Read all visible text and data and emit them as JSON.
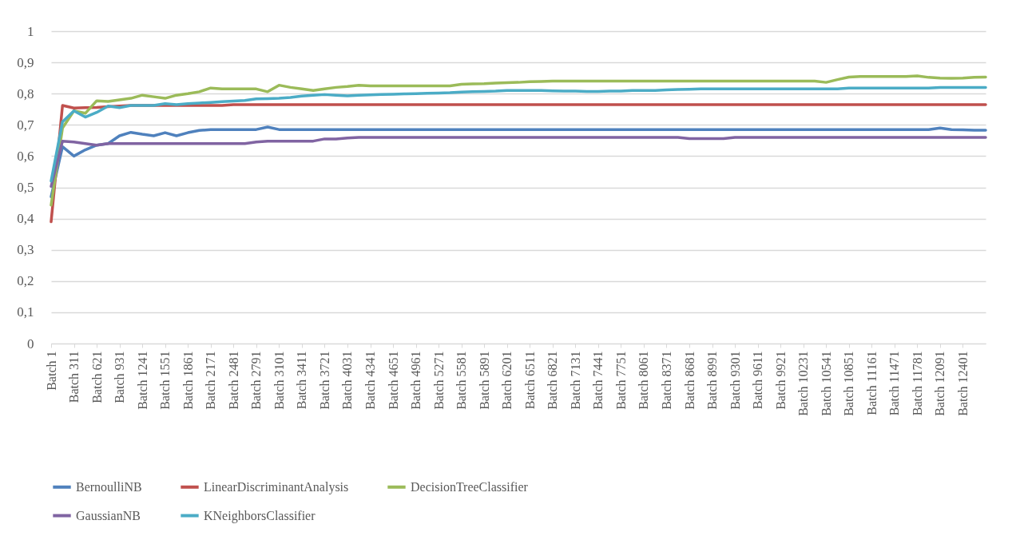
{
  "chart_data": {
    "type": "line",
    "legend": "bottom",
    "grid": "y",
    "line_style": "solid",
    "marker": "none",
    "categories": [
      "Batch 1",
      null,
      "Batch 311",
      null,
      "Batch 621",
      null,
      "Batch 931",
      null,
      "Batch 1241",
      null,
      "Batch 1551",
      null,
      "Batch 1861",
      null,
      "Batch 2171",
      null,
      "Batch 2481",
      null,
      "Batch 2791",
      null,
      "Batch 3101",
      null,
      "Batch 3411",
      null,
      "Batch 3721",
      null,
      "Batch 4031",
      null,
      "Batch 4341",
      null,
      "Batch 4651",
      null,
      "Batch 4961",
      null,
      "Batch 5271",
      null,
      "Batch 5581",
      null,
      "Batch 5891",
      null,
      "Batch 6201",
      null,
      "Batch 6511",
      null,
      "Batch 6821",
      null,
      "Batch 7131",
      null,
      "Batch 7441",
      null,
      "Batch 7751",
      null,
      "Batch 8061",
      null,
      "Batch 8371",
      null,
      "Batch 8681",
      null,
      "Batch 8991",
      null,
      "Batch 9301",
      null,
      "Batch 9611",
      null,
      "Batch 9921",
      null,
      "Batch 10231",
      null,
      "Batch 10541",
      null,
      "Batch 10851",
      null,
      "Batch 11161",
      null,
      "Batch 11471",
      null,
      "Batch 11781",
      null,
      "Batch 12091",
      null,
      "Batch 12401",
      null,
      null
    ],
    "ylim": [
      0,
      1
    ],
    "yticks": [
      0,
      {
        "value": 0.1,
        "label": "0,1"
      },
      {
        "value": 0.2,
        "label": "0,2"
      },
      {
        "value": 0.3,
        "label": "0,3"
      },
      {
        "value": 0.4,
        "label": "0,4"
      },
      {
        "value": 0.5,
        "label": "0,5"
      },
      {
        "value": 0.6,
        "label": "0,6"
      },
      {
        "value": 0.7,
        "label": "0,7"
      },
      {
        "value": 0.8,
        "label": "0,8"
      },
      {
        "value": 0.9,
        "label": "0,9"
      },
      1
    ],
    "series": [
      {
        "name": "BernoulliNB",
        "color": "#4f81bd",
        "values": [
          0.47,
          0.63,
          0.6,
          0.62,
          0.635,
          0.64,
          0.665,
          0.676,
          0.67,
          0.665,
          0.675,
          0.665,
          0.675,
          0.682,
          0.685,
          0.685,
          0.685,
          0.685,
          0.685,
          0.693,
          0.685,
          0.685,
          0.685,
          0.685,
          0.685,
          0.685,
          0.685,
          0.685,
          0.685,
          0.685,
          0.685,
          0.685,
          0.685,
          0.685,
          0.685,
          0.685,
          0.685,
          0.685,
          0.685,
          0.685,
          0.685,
          0.685,
          0.685,
          0.685,
          0.685,
          0.685,
          0.685,
          0.685,
          0.685,
          0.685,
          0.685,
          0.685,
          0.685,
          0.685,
          0.685,
          0.685,
          0.685,
          0.685,
          0.685,
          0.685,
          0.685,
          0.685,
          0.685,
          0.685,
          0.685,
          0.685,
          0.685,
          0.685,
          0.685,
          0.685,
          0.685,
          0.685,
          0.685,
          0.685,
          0.685,
          0.685,
          0.685,
          0.685,
          0.69,
          0.685,
          0.684,
          0.683,
          0.683
        ]
      },
      {
        "name": "LinearDiscriminantAnalysis",
        "color": "#c0504d",
        "values": [
          0.39,
          0.762,
          0.754,
          0.755,
          0.756,
          0.758,
          0.76,
          0.762,
          0.762,
          0.762,
          0.762,
          0.762,
          0.762,
          0.762,
          0.762,
          0.762,
          0.765,
          0.765,
          0.765,
          0.765,
          0.765,
          0.765,
          0.765,
          0.765,
          0.765,
          0.765,
          0.765,
          0.765,
          0.765,
          0.765,
          0.765,
          0.765,
          0.765,
          0.765,
          0.765,
          0.765,
          0.765,
          0.765,
          0.765,
          0.765,
          0.765,
          0.765,
          0.765,
          0.765,
          0.765,
          0.765,
          0.765,
          0.765,
          0.765,
          0.765,
          0.765,
          0.765,
          0.765,
          0.765,
          0.765,
          0.765,
          0.765,
          0.765,
          0.765,
          0.765,
          0.765,
          0.765,
          0.765,
          0.765,
          0.765,
          0.765,
          0.765,
          0.765,
          0.765,
          0.765,
          0.765,
          0.765,
          0.765,
          0.765,
          0.765,
          0.765,
          0.765,
          0.765,
          0.765,
          0.765,
          0.765,
          0.765,
          0.765
        ]
      },
      {
        "name": "DecisionTreeClassifier",
        "color": "#9bbb59",
        "values": [
          0.443,
          0.69,
          0.745,
          0.737,
          0.777,
          0.775,
          0.78,
          0.785,
          0.795,
          0.79,
          0.785,
          0.795,
          0.8,
          0.806,
          0.818,
          0.815,
          0.815,
          0.815,
          0.815,
          0.806,
          0.827,
          0.82,
          0.815,
          0.81,
          0.815,
          0.82,
          0.823,
          0.827,
          0.825,
          0.825,
          0.825,
          0.825,
          0.825,
          0.825,
          0.825,
          0.825,
          0.83,
          0.831,
          0.832,
          0.834,
          0.835,
          0.836,
          0.838,
          0.839,
          0.84,
          0.84,
          0.84,
          0.84,
          0.84,
          0.84,
          0.84,
          0.84,
          0.84,
          0.84,
          0.84,
          0.84,
          0.84,
          0.84,
          0.84,
          0.84,
          0.84,
          0.84,
          0.84,
          0.84,
          0.84,
          0.84,
          0.84,
          0.84,
          0.836,
          0.845,
          0.853,
          0.855,
          0.855,
          0.855,
          0.855,
          0.855,
          0.857,
          0.852,
          0.85,
          0.849,
          0.85,
          0.852,
          0.853
        ]
      },
      {
        "name": "GaussianNB",
        "color": "#8064a2",
        "values": [
          0.503,
          0.648,
          0.645,
          0.64,
          0.635,
          0.64,
          0.64,
          0.64,
          0.64,
          0.64,
          0.64,
          0.64,
          0.64,
          0.64,
          0.64,
          0.64,
          0.64,
          0.64,
          0.645,
          0.648,
          0.648,
          0.648,
          0.648,
          0.648,
          0.655,
          0.655,
          0.658,
          0.66,
          0.66,
          0.66,
          0.66,
          0.66,
          0.66,
          0.66,
          0.66,
          0.66,
          0.66,
          0.66,
          0.66,
          0.66,
          0.66,
          0.66,
          0.66,
          0.66,
          0.66,
          0.66,
          0.66,
          0.66,
          0.66,
          0.66,
          0.66,
          0.66,
          0.66,
          0.66,
          0.66,
          0.66,
          0.656,
          0.656,
          0.656,
          0.656,
          0.66,
          0.66,
          0.66,
          0.66,
          0.66,
          0.66,
          0.66,
          0.66,
          0.66,
          0.66,
          0.66,
          0.66,
          0.66,
          0.66,
          0.66,
          0.66,
          0.66,
          0.66,
          0.66,
          0.66,
          0.66,
          0.66,
          0.66
        ]
      },
      {
        "name": "KNeighborsClassifier",
        "color": "#4bacc6",
        "values": [
          0.52,
          0.71,
          0.745,
          0.725,
          0.74,
          0.76,
          0.755,
          0.762,
          0.762,
          0.762,
          0.768,
          0.765,
          0.768,
          0.77,
          0.772,
          0.774,
          0.776,
          0.778,
          0.783,
          0.784,
          0.785,
          0.788,
          0.792,
          0.795,
          0.797,
          0.795,
          0.793,
          0.795,
          0.796,
          0.797,
          0.798,
          0.799,
          0.8,
          0.801,
          0.802,
          0.803,
          0.805,
          0.806,
          0.807,
          0.808,
          0.81,
          0.81,
          0.81,
          0.81,
          0.809,
          0.808,
          0.808,
          0.807,
          0.807,
          0.808,
          0.808,
          0.81,
          0.81,
          0.81,
          0.812,
          0.813,
          0.814,
          0.815,
          0.815,
          0.815,
          0.815,
          0.815,
          0.815,
          0.815,
          0.815,
          0.815,
          0.815,
          0.815,
          0.815,
          0.815,
          0.818,
          0.818,
          0.818,
          0.818,
          0.818,
          0.818,
          0.818,
          0.818,
          0.82,
          0.82,
          0.82,
          0.82,
          0.82
        ]
      }
    ]
  }
}
